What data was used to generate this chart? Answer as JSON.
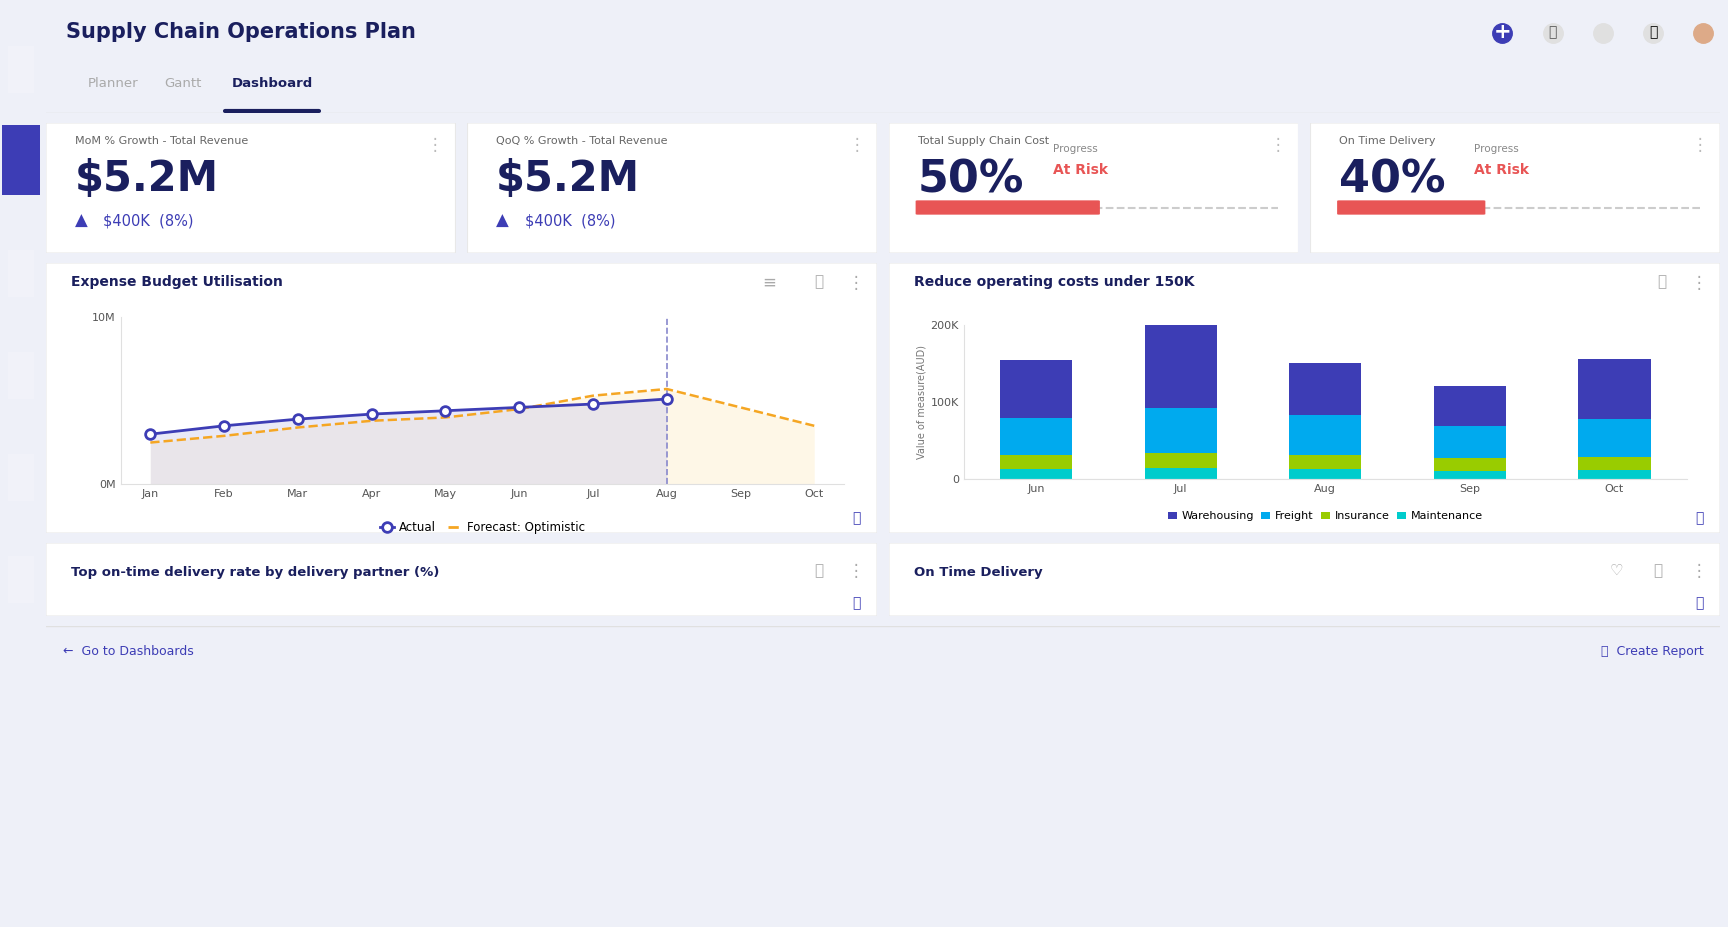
{
  "title": "Supply Chain Operations Plan",
  "nav_items": [
    "Planner",
    "Gantt",
    "Dashboard"
  ],
  "active_nav": "Dashboard",
  "kpi_cards": [
    {
      "title": "MoM % Growth - Total Revenue",
      "value": "$5.2M",
      "change": "$400K  (8%)",
      "change_color": "#3d3db5",
      "type": "money"
    },
    {
      "title": "QoQ % Growth - Total Revenue",
      "value": "$5.2M",
      "change": "$400K  (8%)",
      "change_color": "#3d3db5",
      "type": "money"
    },
    {
      "title": "Total Supply Chain Cost",
      "value": "50%",
      "progress_label": "Progress",
      "status": "At Risk",
      "status_color": "#e85555",
      "progress": 0.5,
      "progress_color": "#e85555",
      "type": "progress"
    },
    {
      "title": "On Time Delivery",
      "value": "40%",
      "progress_label": "Progress",
      "status": "At Risk",
      "status_color": "#e85555",
      "progress": 0.4,
      "progress_color": "#e85555",
      "type": "progress"
    }
  ],
  "line_chart": {
    "title": "Expense Budget Utilisation",
    "months": [
      "Jan",
      "Feb",
      "Mar",
      "Apr",
      "May",
      "Jun",
      "Jul",
      "Aug",
      "Sep",
      "Oct"
    ],
    "actual": [
      3.0,
      3.5,
      3.9,
      4.2,
      4.4,
      4.6,
      4.8,
      5.1,
      null,
      null
    ],
    "forecast": [
      2.5,
      2.9,
      3.4,
      3.8,
      4.0,
      4.5,
      5.3,
      5.7,
      4.6,
      3.5
    ],
    "ymax": 10,
    "ymin": 0,
    "actual_color": "#3d3db5",
    "forecast_color": "#f5a623",
    "fill_actual_color": "#d0d0ee",
    "fill_forecast_color": "#fef0d0",
    "divider_month_idx": 7,
    "legend_actual": "Actual",
    "legend_forecast": "Forecast: Optimistic"
  },
  "bar_chart": {
    "title": "Reduce operating costs under 150K",
    "months": [
      "Jun",
      "Jul",
      "Aug",
      "Sep",
      "Oct"
    ],
    "warehousing": [
      75000,
      110000,
      68000,
      52000,
      78000
    ],
    "freight": [
      48000,
      58000,
      52000,
      42000,
      50000
    ],
    "insurance": [
      18000,
      20000,
      18000,
      16000,
      16000
    ],
    "maintenance": [
      13000,
      14000,
      13000,
      11000,
      12000
    ],
    "colors": {
      "warehousing": "#3d3db5",
      "freight": "#00aaee",
      "insurance": "#99cc00",
      "maintenance": "#00cccc"
    },
    "ymax": 200000,
    "yticks": [
      0,
      100000,
      200000
    ],
    "ytick_labels": [
      "0",
      "100K",
      "200K"
    ],
    "ylabel": "Value of measure(AUD)"
  },
  "bottom_panels": [
    {
      "title": "Top on-time delivery rate by delivery partner (%)"
    },
    {
      "title": "On Time Delivery"
    }
  ],
  "sidebar_color": "#1a1f5e",
  "bg_color": "#eef0f8",
  "card_bg": "#ffffff",
  "header_bg": "#ffffff",
  "title_color": "#1a1f5e",
  "footer_bg": "#ffffff",
  "footer_text_left": "←  Go to Dashboards",
  "footer_text_right": "⎙  Create Report",
  "footer_color": "#3d3db5",
  "tab_active_color": "#1a1f5e",
  "tab_underline_color": "#1a1f5e"
}
